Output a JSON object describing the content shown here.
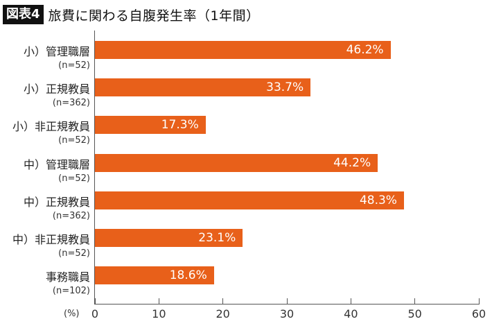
{
  "header": {
    "figure_badge": "図表4",
    "title": "旅費に関わる自腹発生率（1年間）"
  },
  "axis": {
    "unit_label": "(%)",
    "ticks": [
      "0",
      "10",
      "20",
      "30",
      "40",
      "50",
      "60"
    ]
  },
  "bars": [
    {
      "label": "小）管理職層",
      "n": "(n=52)",
      "value": 46.2,
      "value_label": "46.2%"
    },
    {
      "label": "小）正規教員",
      "n": "(n=362)",
      "value": 33.7,
      "value_label": "33.7%"
    },
    {
      "label": "小）非正規教員",
      "n": "(n=52)",
      "value": 17.3,
      "value_label": "17.3%"
    },
    {
      "label": "中）管理職層",
      "n": "(n=52)",
      "value": 44.2,
      "value_label": "44.2%"
    },
    {
      "label": "中）正規教員",
      "n": "(n=362)",
      "value": 48.3,
      "value_label": "48.3%"
    },
    {
      "label": "中）非正規教員",
      "n": "(n=52)",
      "value": 23.1,
      "value_label": "23.1%"
    },
    {
      "label": "事務職員",
      "n": "(n=102)",
      "value": 18.6,
      "value_label": "18.6%"
    }
  ],
  "colors": {
    "bar": "#E8601A",
    "badge_bg": "#111111"
  },
  "chart_data": {
    "type": "bar",
    "orientation": "horizontal",
    "title": "旅費に関わる自腹発生率（1年間）",
    "categories": [
      "小）管理職層 (n=52)",
      "小）正規教員 (n=362)",
      "小）非正規教員 (n=52)",
      "中）管理職層 (n=52)",
      "中）正規教員 (n=362)",
      "中）非正規教員 (n=52)",
      "事務職員 (n=102)"
    ],
    "values": [
      46.2,
      33.7,
      17.3,
      44.2,
      48.3,
      23.1,
      18.6
    ],
    "xlabel": "(%)",
    "ylabel": "",
    "xlim": [
      0,
      60
    ],
    "xticks": [
      0,
      10,
      20,
      30,
      40,
      50,
      60
    ],
    "grid": false,
    "legend": null,
    "data_labels": true
  }
}
